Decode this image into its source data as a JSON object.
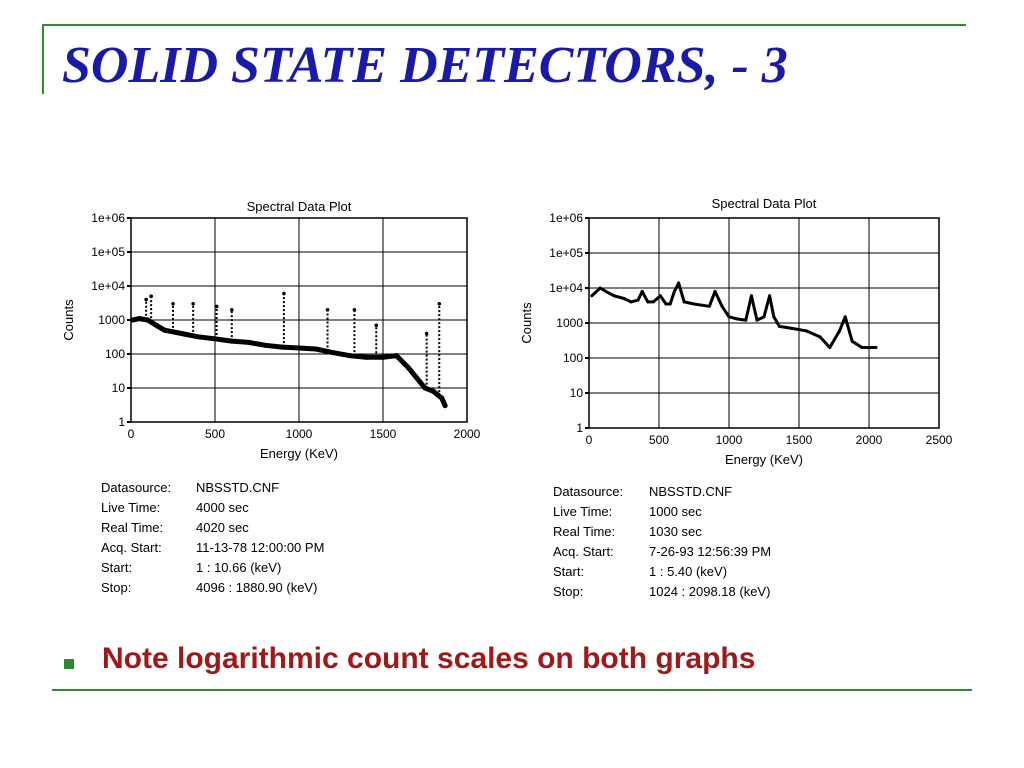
{
  "slide": {
    "title": "SOLID STATE DETECTORS, - 3",
    "bullet": "Note logarithmic count scales on both graphs",
    "colors": {
      "title": "#1a1aa8",
      "bullet_text": "#a01818",
      "rule": "#2e8b2e"
    }
  },
  "chart_data": [
    {
      "type": "scatter",
      "title": "Spectral Data Plot",
      "xlabel": "Energy (KeV)",
      "ylabel": "Counts",
      "xlim": [
        0,
        2000
      ],
      "ylim": [
        1,
        1000000
      ],
      "yscale": "log",
      "grid": true,
      "x_ticks": [
        0,
        500,
        1000,
        1500,
        2000
      ],
      "x_tick_labels": [
        "0",
        "500",
        "1000",
        "1500",
        "2000"
      ],
      "y_ticks": [
        1,
        10,
        100,
        1000,
        10000,
        100000,
        1000000
      ],
      "y_tick_labels": [
        "1",
        "10",
        "100",
        "1000",
        "1e+04",
        "1e+05",
        "1e+06"
      ],
      "series": [
        {
          "x": [
            10,
            50,
            100,
            150,
            200,
            300,
            400,
            500,
            600,
            700,
            800,
            900,
            1000,
            1100,
            1200,
            1300,
            1400,
            1500,
            1580,
            1650,
            1700,
            1750,
            1800,
            1850,
            1870
          ],
          "y": [
            1000,
            1100,
            1000,
            700,
            500,
            400,
            320,
            280,
            240,
            220,
            180,
            160,
            150,
            140,
            110,
            90,
            80,
            80,
            90,
            40,
            20,
            10,
            8,
            5,
            3
          ]
        }
      ],
      "peaks": [
        {
          "x": 90,
          "y": 4000
        },
        {
          "x": 120,
          "y": 5000
        },
        {
          "x": 250,
          "y": 3000
        },
        {
          "x": 370,
          "y": 3000
        },
        {
          "x": 510,
          "y": 2500
        },
        {
          "x": 600,
          "y": 2000
        },
        {
          "x": 910,
          "y": 6000
        },
        {
          "x": 1170,
          "y": 2000
        },
        {
          "x": 1330,
          "y": 2000
        },
        {
          "x": 1460,
          "y": 700
        },
        {
          "x": 1760,
          "y": 400
        },
        {
          "x": 1835,
          "y": 3000
        }
      ],
      "datasource": {
        "rows": [
          {
            "label": "Datasource:",
            "value": "NBSSTD.CNF"
          },
          {
            "label": "Live Time:",
            "value": "4000 sec"
          },
          {
            "label": "Real Time:",
            "value": "4020 sec"
          },
          {
            "label": "Acq. Start:",
            "value": "11-13-78 12:00:00 PM"
          },
          {
            "label": "Start:",
            "value": "1 : 10.66 (keV)"
          },
          {
            "label": "Stop:",
            "value": "4096 : 1880.90 (keV)"
          }
        ]
      }
    },
    {
      "type": "line",
      "title": "Spectral Data Plot",
      "xlabel": "Energy (KeV)",
      "ylabel": "Counts",
      "xlim": [
        0,
        2500
      ],
      "ylim": [
        1,
        1000000
      ],
      "yscale": "log",
      "grid": true,
      "x_ticks": [
        0,
        500,
        1000,
        1500,
        2000,
        2500
      ],
      "x_tick_labels": [
        "0",
        "500",
        "1000",
        "1500",
        "2000",
        "2500"
      ],
      "y_ticks": [
        1,
        10,
        100,
        1000,
        10000,
        100000,
        1000000
      ],
      "y_tick_labels": [
        "1",
        "10",
        "100",
        "1000",
        "1e+04",
        "1e+05",
        "1e+06"
      ],
      "series": [
        {
          "x": [
            20,
            80,
            120,
            180,
            250,
            300,
            350,
            380,
            420,
            460,
            510,
            550,
            580,
            610,
            640,
            680,
            750,
            860,
            900,
            950,
            1000,
            1060,
            1120,
            1160,
            1200,
            1250,
            1290,
            1320,
            1360,
            1450,
            1550,
            1650,
            1720,
            1790,
            1830,
            1880,
            1950,
            2050
          ],
          "y": [
            6000,
            10000,
            8000,
            6000,
            5000,
            4000,
            4500,
            8000,
            4000,
            4000,
            6000,
            3500,
            3500,
            8000,
            14000,
            4000,
            3500,
            3000,
            8000,
            3000,
            1500,
            1300,
            1200,
            6000,
            1200,
            1500,
            6000,
            1500,
            800,
            700,
            600,
            400,
            200,
            600,
            1500,
            300,
            200,
            200
          ]
        }
      ],
      "datasource": {
        "rows": [
          {
            "label": "Datasource:",
            "value": "NBSSTD.CNF"
          },
          {
            "label": "Live Time:",
            "value": "1000 sec"
          },
          {
            "label": "Real Time:",
            "value": "1030 sec"
          },
          {
            "label": "Acq. Start:",
            "value": "7-26-93 12:56:39 PM"
          },
          {
            "label": "Start:",
            "value": "1 : 5.40 (keV)"
          },
          {
            "label": "Stop:",
            "value": "1024 : 2098.18 (keV)"
          }
        ]
      }
    }
  ]
}
